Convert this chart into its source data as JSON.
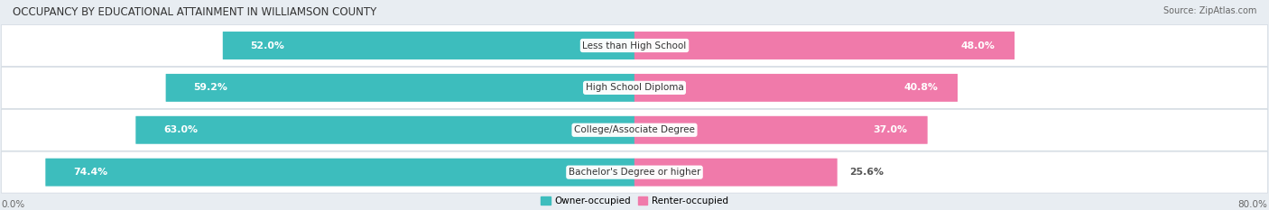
{
  "title": "OCCUPANCY BY EDUCATIONAL ATTAINMENT IN WILLIAMSON COUNTY",
  "source": "Source: ZipAtlas.com",
  "categories": [
    "Less than High School",
    "High School Diploma",
    "College/Associate Degree",
    "Bachelor's Degree or higher"
  ],
  "owner_values": [
    52.0,
    59.2,
    63.0,
    74.4
  ],
  "renter_values": [
    48.0,
    40.8,
    37.0,
    25.6
  ],
  "owner_color": "#3DBDBD",
  "renter_color": "#F07AAA",
  "owner_label": "Owner-occupied",
  "renter_label": "Renter-occupied",
  "x_axis_left_label": "0.0%",
  "x_axis_right_label": "80.0%",
  "bar_height": 0.62,
  "background_color": "#e8edf2",
  "row_bg_color": "#f2f5f8",
  "title_fontsize": 8.5,
  "source_fontsize": 7,
  "label_fontsize": 7.8,
  "tick_fontsize": 7.5,
  "max_val": 80.0
}
